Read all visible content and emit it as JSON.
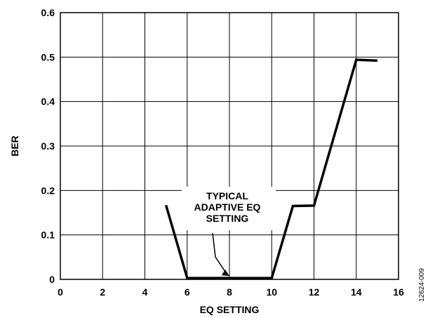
{
  "chart_data": {
    "type": "line",
    "title": "",
    "xlabel": "EQ SETTING",
    "ylabel": "BER",
    "xlim": [
      0,
      16
    ],
    "ylim": [
      0,
      0.6
    ],
    "x_ticks": [
      0,
      2,
      4,
      6,
      8,
      10,
      12,
      14,
      16
    ],
    "x_tick_labels": [
      "0",
      "2",
      "4",
      "6",
      "8",
      "10",
      "12",
      "14",
      "16"
    ],
    "y_ticks": [
      0,
      0.1,
      0.2,
      0.3,
      0.4,
      0.5,
      0.6
    ],
    "y_tick_labels": [
      "0",
      "0.1",
      "0.2",
      "0.3",
      "0.4",
      "0.5",
      "0.6"
    ],
    "grid": true,
    "legend": "none",
    "series": [
      {
        "x": [
          5,
          6,
          7,
          8,
          9,
          10,
          11,
          12,
          13,
          14,
          15
        ],
        "values": [
          0.167,
          0.003,
          0.003,
          0.003,
          0.003,
          0.003,
          0.165,
          0.166,
          0.33,
          0.494,
          0.492
        ],
        "color": "#000000"
      }
    ],
    "annotation": {
      "lines": [
        "TYPICAL",
        "ADAPTIVE EQ",
        "SETTING"
      ],
      "arrow_target": [
        8,
        0.003
      ]
    },
    "figure_id": "12624-009"
  }
}
